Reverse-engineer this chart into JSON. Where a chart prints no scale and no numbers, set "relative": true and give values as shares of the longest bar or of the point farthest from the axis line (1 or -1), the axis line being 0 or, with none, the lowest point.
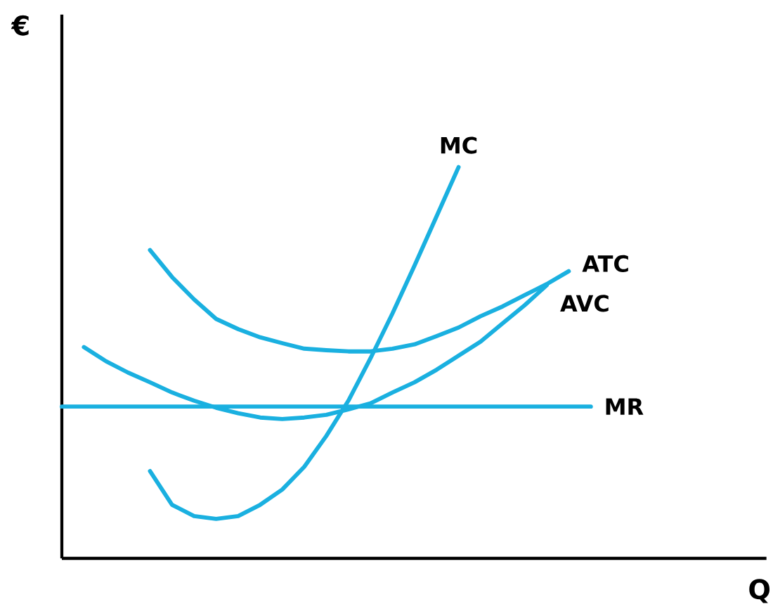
{
  "chart_data": {
    "type": "line",
    "relative": true,
    "annotations": [
      "€",
      "Q"
    ],
    "legend": false,
    "marker": "none",
    "line_style": "solid",
    "categories": [
      null,
      null,
      null,
      null,
      null,
      null,
      null,
      null,
      null,
      null,
      null,
      null,
      null,
      null,
      null,
      null,
      null,
      null,
      null,
      null,
      null,
      null,
      null,
      null,
      null
    ],
    "series": [
      {
        "name": "MC",
        "color": "#1ab0e0",
        "values": [
          null,
          null,
          null,
          null,
          0.223,
          0.137,
          0.108,
          0.101,
          0.108,
          0.137,
          0.176,
          0.234,
          0.313,
          0.403,
          0.511,
          0.626,
          0.748,
          0.874,
          1,
          null,
          null,
          null,
          null,
          null,
          null
        ]
      },
      {
        "name": "ATC",
        "color": "#1ab0e0",
        "values": [
          null,
          null,
          null,
          null,
          0.788,
          0.719,
          0.662,
          0.612,
          0.586,
          0.565,
          0.55,
          0.536,
          0.532,
          0.529,
          0.529,
          0.536,
          0.547,
          0.568,
          0.59,
          0.619,
          0.644,
          0.673,
          0.701,
          0.734,
          null
        ]
      },
      {
        "name": "AVC",
        "color": "#1ab0e0",
        "values": [
          null,
          0.54,
          0.504,
          0.475,
          0.45,
          0.424,
          0.403,
          0.385,
          0.371,
          0.36,
          0.356,
          0.36,
          0.367,
          0.381,
          0.396,
          0.424,
          0.45,
          0.482,
          0.518,
          0.554,
          0.601,
          0.647,
          0.698,
          null,
          null
        ]
      },
      {
        "name": "MR",
        "color": "#1ab0e0",
        "values": [
          0.388,
          0.388,
          0.388,
          0.388,
          0.388,
          0.388,
          0.388,
          0.388,
          0.388,
          0.388,
          0.388,
          0.388,
          0.388,
          0.388,
          0.388,
          0.388,
          0.388,
          0.388,
          0.388,
          0.388,
          0.388,
          0.388,
          0.388,
          0.388,
          0.388
        ]
      }
    ]
  }
}
